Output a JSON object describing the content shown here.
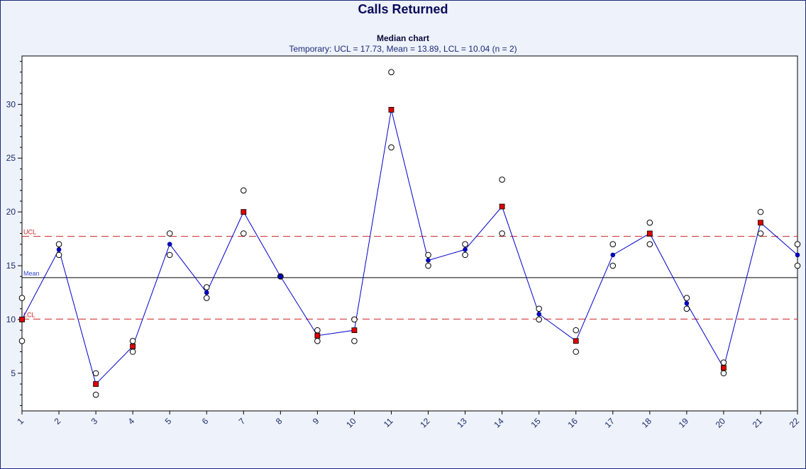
{
  "chart_data": {
    "type": "line",
    "title": "Calls Returned",
    "subtitle": "Median chart",
    "subtitle2": "Temporary: UCL = 17.73, Mean = 13.89, LCL = 10.04 (n = 2)",
    "x": [
      1,
      2,
      3,
      4,
      5,
      6,
      7,
      8,
      9,
      10,
      11,
      12,
      13,
      14,
      15,
      16,
      17,
      18,
      19,
      20,
      21,
      22
    ],
    "x_tick_labels": [
      "1",
      "2",
      "3",
      "4",
      "5",
      "6",
      "7",
      "8",
      "9",
      "10",
      "11",
      "12",
      "13",
      "14",
      "15",
      "16",
      "17",
      "18",
      "19",
      "20",
      "21",
      "22"
    ],
    "ylim": [
      1.5,
      34.5
    ],
    "y_ticks": [
      5,
      10,
      15,
      20,
      25,
      30
    ],
    "grid": false,
    "series": [
      {
        "role": "median",
        "values": [
          10,
          16.5,
          4,
          7.5,
          17,
          12.5,
          20,
          14,
          8.5,
          9,
          29.5,
          15.5,
          16.5,
          20.5,
          10.5,
          8,
          16,
          18,
          11.5,
          5.5,
          19,
          16
        ],
        "out_of_control": [
          true,
          false,
          true,
          true,
          false,
          false,
          true,
          false,
          true,
          true,
          true,
          false,
          false,
          true,
          false,
          true,
          false,
          true,
          false,
          true,
          true,
          false
        ],
        "color": "#0000cc",
        "flag_color": "#dd0000"
      },
      {
        "role": "observations",
        "points": [
          [
            12,
            8
          ],
          [
            17,
            16
          ],
          [
            5,
            3
          ],
          [
            8,
            7
          ],
          [
            18,
            16
          ],
          [
            13,
            12
          ],
          [
            22,
            18
          ],
          [
            14,
            14
          ],
          [
            9,
            8
          ],
          [
            10,
            8
          ],
          [
            33,
            26
          ],
          [
            16,
            15
          ],
          [
            17,
            16
          ],
          [
            23,
            18
          ],
          [
            11,
            10
          ],
          [
            9,
            7
          ],
          [
            17,
            15
          ],
          [
            19,
            17
          ],
          [
            12,
            11
          ],
          [
            6,
            5
          ],
          [
            20,
            18
          ],
          [
            17,
            15
          ]
        ]
      }
    ],
    "control_lines": {
      "ucl": {
        "label": "UCL",
        "value": 17.73,
        "color": "#cc2222"
      },
      "mean": {
        "label": "Mean",
        "value": 13.89,
        "color": "#000000",
        "label_color": "#3344cc"
      },
      "lcl": {
        "label": "LCL",
        "value": 10.04,
        "color": "#cc2222"
      }
    }
  }
}
